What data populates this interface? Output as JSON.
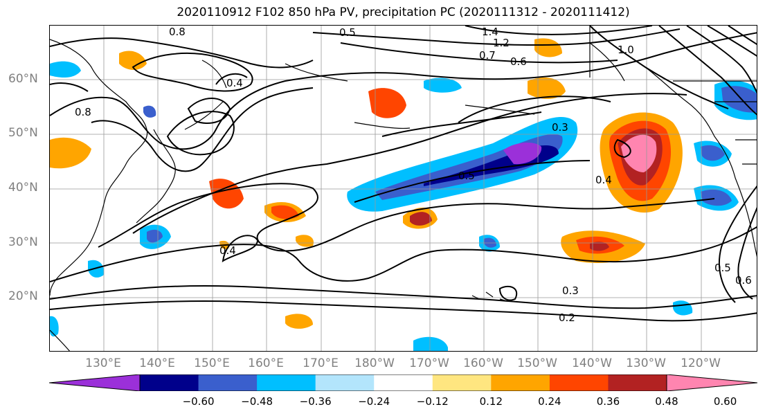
{
  "title": "2020110912 F102 850 hPa PV, precipitation PC (2020111312 - 2020111412)",
  "lat_labels": [
    "60°N",
    "50°N",
    "40°N",
    "30°N",
    "20°N"
  ],
  "lon_labels": [
    "130°E",
    "140°E",
    "150°E",
    "160°E",
    "170°E",
    "180°W",
    "170°W",
    "160°W",
    "150°W",
    "140°W",
    "130°W",
    "120°W"
  ],
  "contour_labels": [
    "0.5",
    "0.8",
    "1.4",
    "1.2",
    "1.0",
    "0.7",
    "0.6",
    "0.4",
    "0.3",
    "0.5",
    "0.4",
    "0.4",
    "0.3",
    "0.2",
    "0.5",
    "0.6",
    "0.8"
  ],
  "colorbar": {
    "colors": [
      "#9b30d9",
      "#00008b",
      "#3a5fcd",
      "#00bfff",
      "#b3e5fc",
      "#ffffff",
      "#ffe680",
      "#ffa500",
      "#ff4500",
      "#b22222",
      "#ff85b0"
    ],
    "labels": [
      "−0.60",
      "−0.48",
      "−0.36",
      "−0.24",
      "−0.12",
      "0.12",
      "0.24",
      "0.36",
      "0.48",
      "0.60"
    ]
  }
}
